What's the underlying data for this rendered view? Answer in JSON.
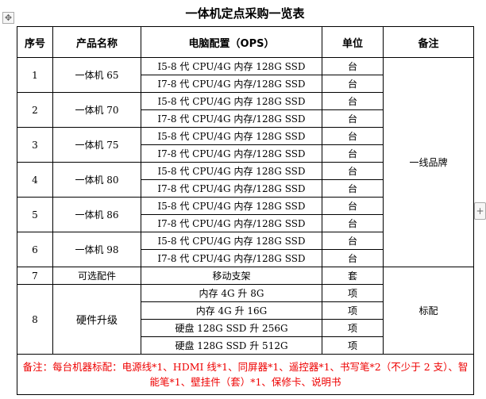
{
  "title": "一体机定点采购一览表",
  "headers": [
    "序号",
    "产品名称",
    "电脑配置（OPS）",
    "单位",
    "备注"
  ],
  "products": [
    {
      "no": "1",
      "name": "一体机 65",
      "configs": [
        "I5-8 代 CPU/4G 内存 128G SSD",
        "I7-8 代 CPU/4G 内存/128G SSD"
      ]
    },
    {
      "no": "2",
      "name": "一体机 70",
      "configs": [
        "I5-8 代 CPU/4G 内存 128G SSD",
        "I7-8 代 CPU/4G 内存/128G SSD"
      ]
    },
    {
      "no": "3",
      "name": "一体机 75",
      "configs": [
        "I5-8 代 CPU/4G 内存 128G SSD",
        "I7-8 代 CPU/4G 内存/128G SSD"
      ]
    },
    {
      "no": "4",
      "name": "一体机 80",
      "configs": [
        "I5-8 代 CPU/4G 内存 128G SSD",
        "I7-8 代 CPU/4G 内存/128G SSD"
      ]
    },
    {
      "no": "5",
      "name": "一体机 86",
      "configs": [
        "I5-8 代 CPU/4G 内存 128G SSD",
        "I7-8 代 CPU/4G 内存/128G SSD"
      ]
    },
    {
      "no": "6",
      "name": "一体机 98",
      "configs": [
        "I5-8 代 CPU/4G 内存 128G SSD",
        "I7-8 代 CPU/4G 内存/128G SSD"
      ]
    }
  ],
  "unit_tai": "台",
  "remark_brand": "一线品牌",
  "accessory": {
    "no": "7",
    "name": "可选配件",
    "config": "移动支架",
    "unit": "套"
  },
  "upgrade": {
    "no": "8",
    "name": "硬件升级",
    "unit": "项",
    "items": [
      "内存 4G 升 8G",
      "内存 4G 升 16G",
      "硬盘 128G SSD 升 256G",
      "硬盘 128G SSD 升 512G"
    ]
  },
  "remark_std": "标配",
  "note": "备注：每台机器标配：电源线*1、HDMI 线*1、同屏器*1、遥控器*1、书写笔*2（不少于 2 支）、智能笔*1、壁挂件（套）*1、保修卡、说明书"
}
